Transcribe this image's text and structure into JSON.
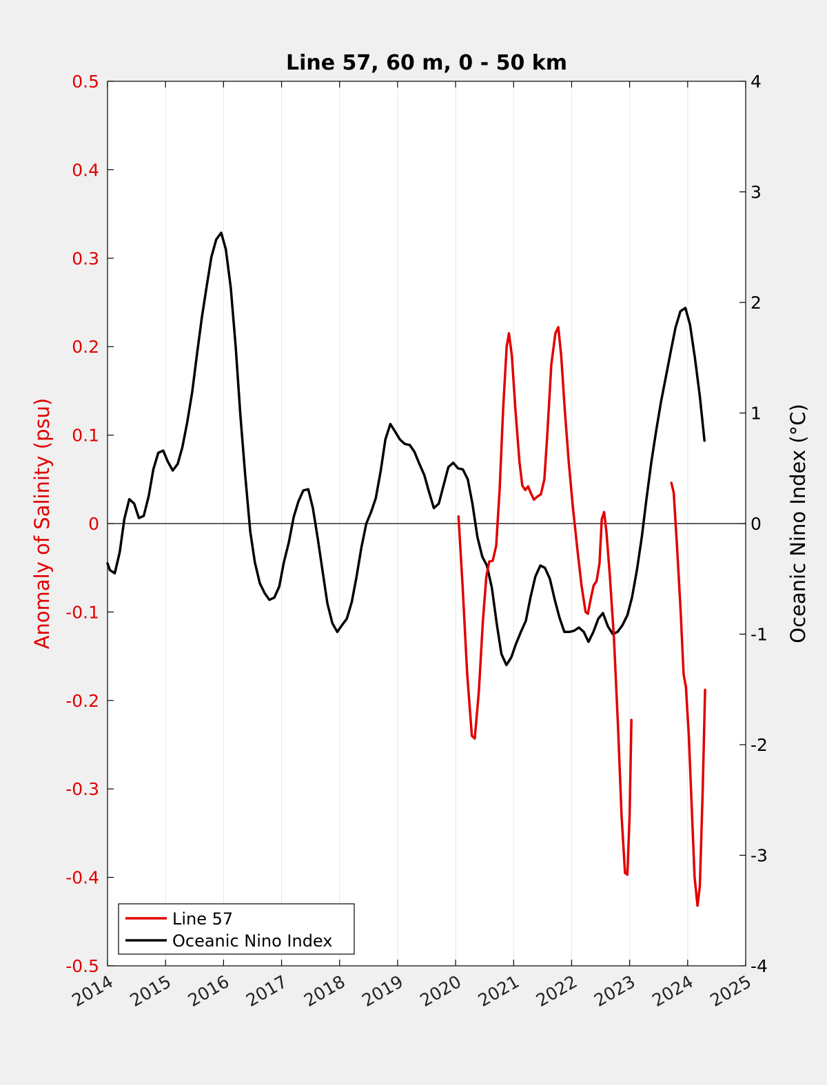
{
  "chart_data": {
    "type": "line",
    "title": "Line 57, 60 m, 0 - 50 km",
    "xlabel": "",
    "xlim": [
      2014,
      2025
    ],
    "x_ticks": [
      "2014",
      "2015",
      "2016",
      "2017",
      "2018",
      "2019",
      "2020",
      "2021",
      "2022",
      "2023",
      "2024",
      "2025"
    ],
    "y_left": {
      "label": "Anomaly of Salinity (psu)",
      "lim": [
        -0.5,
        0.5
      ],
      "ticks": [
        "0.5",
        "0.4",
        "0.3",
        "0.2",
        "0.1",
        "0",
        "-0.1",
        "-0.2",
        "-0.3",
        "-0.4",
        "-0.5"
      ],
      "color": "#e00000"
    },
    "y_right": {
      "label": "Oceanic Nino Index (°C)",
      "lim": [
        -4,
        4
      ],
      "ticks": [
        "4",
        "3",
        "2",
        "1",
        "0",
        "-1",
        "-2",
        "-3",
        "-4"
      ],
      "color": "#000000"
    },
    "grid": "vertical",
    "zero_line": true,
    "legend": {
      "position": "bottom-left",
      "entries": [
        "Line 57",
        "Oceanic Nino Index"
      ]
    },
    "series": [
      {
        "name": "Line 57",
        "axis": "left",
        "color": "#e00000",
        "segments": [
          [
            [
              2020.05,
              0.008
            ],
            [
              2020.12,
              -0.07
            ],
            [
              2020.2,
              -0.17
            ],
            [
              2020.28,
              -0.24
            ],
            [
              2020.33,
              -0.243
            ],
            [
              2020.4,
              -0.19
            ],
            [
              2020.47,
              -0.11
            ],
            [
              2020.53,
              -0.06
            ],
            [
              2020.58,
              -0.043
            ],
            [
              2020.64,
              -0.042
            ],
            [
              2020.7,
              -0.025
            ],
            [
              2020.76,
              0.04
            ],
            [
              2020.82,
              0.13
            ],
            [
              2020.88,
              0.2
            ],
            [
              2020.92,
              0.215
            ],
            [
              2020.97,
              0.19
            ],
            [
              2021.03,
              0.13
            ],
            [
              2021.1,
              0.07
            ],
            [
              2021.15,
              0.043
            ],
            [
              2021.2,
              0.038
            ],
            [
              2021.25,
              0.042
            ],
            [
              2021.3,
              0.034
            ],
            [
              2021.35,
              0.027
            ],
            [
              2021.4,
              0.03
            ],
            [
              2021.47,
              0.033
            ],
            [
              2021.53,
              0.05
            ],
            [
              2021.58,
              0.1
            ],
            [
              2021.65,
              0.18
            ],
            [
              2021.72,
              0.215
            ],
            [
              2021.77,
              0.222
            ],
            [
              2021.82,
              0.19
            ],
            [
              2021.88,
              0.13
            ],
            [
              2021.95,
              0.07
            ],
            [
              2022.02,
              0.02
            ],
            [
              2022.1,
              -0.03
            ],
            [
              2022.17,
              -0.07
            ],
            [
              2022.24,
              -0.1
            ],
            [
              2022.28,
              -0.102
            ],
            [
              2022.33,
              -0.085
            ],
            [
              2022.38,
              -0.07
            ],
            [
              2022.43,
              -0.065
            ],
            [
              2022.48,
              -0.045
            ],
            [
              2022.52,
              0.005
            ],
            [
              2022.56,
              0.013
            ],
            [
              2022.6,
              -0.01
            ],
            [
              2022.66,
              -0.06
            ],
            [
              2022.73,
              -0.13
            ],
            [
              2022.8,
              -0.23
            ],
            [
              2022.86,
              -0.33
            ],
            [
              2022.92,
              -0.395
            ],
            [
              2022.96,
              -0.397
            ],
            [
              2023.0,
              -0.33
            ],
            [
              2023.03,
              -0.222
            ]
          ],
          [
            [
              2023.72,
              0.046
            ],
            [
              2023.76,
              0.035
            ],
            [
              2023.82,
              -0.03
            ],
            [
              2023.88,
              -0.1
            ],
            [
              2023.93,
              -0.17
            ],
            [
              2023.97,
              -0.185
            ],
            [
              2024.02,
              -0.24
            ],
            [
              2024.07,
              -0.32
            ],
            [
              2024.12,
              -0.4
            ],
            [
              2024.17,
              -0.432
            ],
            [
              2024.21,
              -0.41
            ],
            [
              2024.26,
              -0.3
            ],
            [
              2024.3,
              -0.188
            ]
          ]
        ]
      },
      {
        "name": "Oceanic Nino Index",
        "axis": "right",
        "color": "#000000",
        "segments": [
          [
            [
              2014.0,
              -0.36
            ],
            [
              2014.04,
              -0.42
            ],
            [
              2014.125,
              -0.45
            ],
            [
              2014.21,
              -0.26
            ],
            [
              2014.29,
              0.04
            ],
            [
              2014.375,
              0.22
            ],
            [
              2014.46,
              0.18
            ],
            [
              2014.54,
              0.05
            ],
            [
              2014.625,
              0.07
            ],
            [
              2014.71,
              0.25
            ],
            [
              2014.79,
              0.49
            ],
            [
              2014.875,
              0.64
            ],
            [
              2014.96,
              0.66
            ],
            [
              2015.04,
              0.56
            ],
            [
              2015.125,
              0.48
            ],
            [
              2015.21,
              0.54
            ],
            [
              2015.29,
              0.69
            ],
            [
              2015.375,
              0.92
            ],
            [
              2015.46,
              1.19
            ],
            [
              2015.54,
              1.52
            ],
            [
              2015.625,
              1.86
            ],
            [
              2015.71,
              2.15
            ],
            [
              2015.79,
              2.41
            ],
            [
              2015.875,
              2.57
            ],
            [
              2015.96,
              2.63
            ],
            [
              2016.04,
              2.48
            ],
            [
              2016.125,
              2.13
            ],
            [
              2016.21,
              1.6
            ],
            [
              2016.29,
              0.98
            ],
            [
              2016.375,
              0.43
            ],
            [
              2016.46,
              -0.07
            ],
            [
              2016.54,
              -0.35
            ],
            [
              2016.625,
              -0.54
            ],
            [
              2016.71,
              -0.63
            ],
            [
              2016.79,
              -0.69
            ],
            [
              2016.875,
              -0.67
            ],
            [
              2016.96,
              -0.57
            ],
            [
              2017.04,
              -0.35
            ],
            [
              2017.125,
              -0.17
            ],
            [
              2017.21,
              0.06
            ],
            [
              2017.29,
              0.2
            ],
            [
              2017.375,
              0.3
            ],
            [
              2017.46,
              0.31
            ],
            [
              2017.54,
              0.14
            ],
            [
              2017.625,
              -0.14
            ],
            [
              2017.71,
              -0.44
            ],
            [
              2017.79,
              -0.72
            ],
            [
              2017.875,
              -0.9
            ],
            [
              2017.96,
              -0.98
            ],
            [
              2018.04,
              -0.92
            ],
            [
              2018.125,
              -0.86
            ],
            [
              2018.21,
              -0.71
            ],
            [
              2018.29,
              -0.49
            ],
            [
              2018.375,
              -0.22
            ],
            [
              2018.46,
              0.0
            ],
            [
              2018.54,
              0.1
            ],
            [
              2018.625,
              0.23
            ],
            [
              2018.71,
              0.48
            ],
            [
              2018.79,
              0.76
            ],
            [
              2018.875,
              0.9
            ],
            [
              2018.96,
              0.83
            ],
            [
              2019.04,
              0.76
            ],
            [
              2019.125,
              0.72
            ],
            [
              2019.21,
              0.71
            ],
            [
              2019.29,
              0.65
            ],
            [
              2019.375,
              0.54
            ],
            [
              2019.46,
              0.44
            ],
            [
              2019.54,
              0.29
            ],
            [
              2019.625,
              0.14
            ],
            [
              2019.71,
              0.18
            ],
            [
              2019.79,
              0.34
            ],
            [
              2019.875,
              0.51
            ],
            [
              2019.96,
              0.55
            ],
            [
              2020.04,
              0.5
            ],
            [
              2020.125,
              0.49
            ],
            [
              2020.21,
              0.4
            ],
            [
              2020.29,
              0.18
            ],
            [
              2020.375,
              -0.12
            ],
            [
              2020.46,
              -0.3
            ],
            [
              2020.54,
              -0.38
            ],
            [
              2020.625,
              -0.58
            ],
            [
              2020.71,
              -0.91
            ],
            [
              2020.79,
              -1.18
            ],
            [
              2020.875,
              -1.28
            ],
            [
              2020.96,
              -1.21
            ],
            [
              2021.04,
              -1.09
            ],
            [
              2021.125,
              -0.98
            ],
            [
              2021.21,
              -0.88
            ],
            [
              2021.29,
              -0.67
            ],
            [
              2021.375,
              -0.48
            ],
            [
              2021.46,
              -0.38
            ],
            [
              2021.54,
              -0.4
            ],
            [
              2021.625,
              -0.5
            ],
            [
              2021.71,
              -0.69
            ],
            [
              2021.79,
              -0.85
            ],
            [
              2021.875,
              -0.98
            ],
            [
              2021.96,
              -0.98
            ],
            [
              2022.04,
              -0.97
            ],
            [
              2022.125,
              -0.94
            ],
            [
              2022.21,
              -0.98
            ],
            [
              2022.29,
              -1.07
            ],
            [
              2022.375,
              -0.98
            ],
            [
              2022.46,
              -0.86
            ],
            [
              2022.54,
              -0.81
            ],
            [
              2022.625,
              -0.93
            ],
            [
              2022.71,
              -1.0
            ],
            [
              2022.79,
              -0.98
            ],
            [
              2022.875,
              -0.92
            ],
            [
              2022.96,
              -0.83
            ],
            [
              2023.04,
              -0.67
            ],
            [
              2023.125,
              -0.42
            ],
            [
              2023.21,
              -0.12
            ],
            [
              2023.29,
              0.22
            ],
            [
              2023.375,
              0.56
            ],
            [
              2023.46,
              0.85
            ],
            [
              2023.54,
              1.1
            ],
            [
              2023.625,
              1.33
            ],
            [
              2023.71,
              1.56
            ],
            [
              2023.79,
              1.77
            ],
            [
              2023.875,
              1.92
            ],
            [
              2023.96,
              1.95
            ],
            [
              2024.04,
              1.8
            ],
            [
              2024.125,
              1.5
            ],
            [
              2024.21,
              1.15
            ],
            [
              2024.29,
              0.75
            ]
          ]
        ]
      }
    ]
  }
}
